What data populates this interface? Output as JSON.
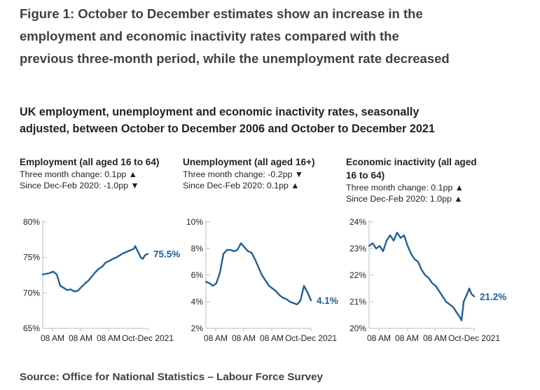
{
  "figure_title": "Figure 1: October to December estimates show an increase in the employment and economic inactivity rates compared with the previous three-month period, while the unemployment rate decreased",
  "subtitle": "UK employment, unemployment and economic inactivity rates, seasonally adjusted, between October to December 2006 and October to December 2021",
  "source": "Source: Office for National Statistics – Labour Force Survey",
  "colors": {
    "line": "#206095",
    "axis": "#bdbdbd",
    "text": "#222222"
  },
  "panels": [
    {
      "title": "Employment (all aged 16 to 64)",
      "change_line": "Three month change: 0.1pp ▲",
      "since_line": "Since Dec-Feb 2020: -1.0pp ▼"
    },
    {
      "title": "Unemployment (all aged 16+)",
      "change_line": "Three month change: -0.2pp ▼",
      "since_line": "Since Dec-Feb 2020: 0.1pp ▲"
    },
    {
      "title": "Economic inactivity (all aged 16 to 64)",
      "change_line": "Three month change: 0.1pp ▲",
      "since_line": "Since Dec-Feb 2020: 1.0pp ▲"
    }
  ],
  "chart_data": [
    {
      "type": "line",
      "title": "Employment (all aged 16 to 64)",
      "ylim": [
        65,
        80
      ],
      "yticks": [
        80,
        75,
        70,
        65
      ],
      "ytick_labels": [
        "80%",
        "75%",
        "70%",
        "65%"
      ],
      "xlim": [
        2006.8,
        2021.8
      ],
      "xticks": [
        2008.2,
        2012.2,
        2016.2,
        2021.8
      ],
      "xtick_labels": [
        "08 AM",
        "08 AM",
        "08 AM",
        "Oct-Dec 2021"
      ],
      "end_label": "75.5%",
      "series": [
        {
          "name": "Employment rate",
          "x": [
            2006.8,
            2007.3,
            2007.8,
            2008.3,
            2008.8,
            2009.3,
            2009.8,
            2010.3,
            2010.8,
            2011.3,
            2011.8,
            2012.3,
            2012.8,
            2013.3,
            2013.8,
            2014.3,
            2014.8,
            2015.3,
            2015.8,
            2016.3,
            2016.8,
            2017.3,
            2017.8,
            2018.3,
            2018.8,
            2019.3,
            2019.8,
            2020.0,
            2020.3,
            2020.8,
            2021.1,
            2021.4,
            2021.8
          ],
          "y": [
            72.6,
            72.7,
            72.8,
            73.0,
            72.6,
            71.0,
            70.7,
            70.4,
            70.5,
            70.2,
            70.3,
            70.8,
            71.3,
            71.7,
            72.3,
            72.9,
            73.4,
            73.7,
            74.3,
            74.5,
            74.8,
            75.0,
            75.3,
            75.6,
            75.8,
            76.0,
            76.2,
            76.6,
            76.0,
            75.0,
            74.8,
            75.3,
            75.5
          ]
        }
      ]
    },
    {
      "type": "line",
      "title": "Unemployment (all aged 16+)",
      "ylim": [
        2,
        10
      ],
      "yticks": [
        10,
        8,
        6,
        4,
        2
      ],
      "ytick_labels": [
        "10%",
        "8%",
        "6%",
        "4%",
        "2%"
      ],
      "xlim": [
        2006.8,
        2021.8
      ],
      "xticks": [
        2008.2,
        2012.2,
        2016.2,
        2021.8
      ],
      "xtick_labels": [
        "08 AM",
        "08 AM",
        "08 AM",
        "Oct-Dec 2021"
      ],
      "end_label": "4.1%",
      "series": [
        {
          "name": "Unemployment rate",
          "x": [
            2006.8,
            2007.3,
            2007.8,
            2008.3,
            2008.8,
            2009.3,
            2009.8,
            2010.3,
            2010.8,
            2011.3,
            2011.8,
            2012.3,
            2012.8,
            2013.3,
            2013.8,
            2014.3,
            2014.8,
            2015.3,
            2015.8,
            2016.3,
            2016.8,
            2017.3,
            2017.8,
            2018.3,
            2018.8,
            2019.3,
            2019.8,
            2020.0,
            2020.3,
            2020.8,
            2021.1,
            2021.4,
            2021.8
          ],
          "y": [
            5.5,
            5.4,
            5.2,
            5.4,
            6.2,
            7.6,
            7.9,
            7.9,
            7.8,
            7.9,
            8.4,
            8.1,
            7.8,
            7.7,
            7.2,
            6.6,
            6.0,
            5.6,
            5.2,
            5.0,
            4.8,
            4.5,
            4.3,
            4.2,
            4.0,
            3.9,
            3.8,
            3.9,
            4.1,
            5.2,
            4.9,
            4.6,
            4.1
          ]
        }
      ]
    },
    {
      "type": "line",
      "title": "Economic inactivity (all aged 16 to 64)",
      "ylim": [
        20,
        24
      ],
      "yticks": [
        24,
        23,
        22,
        21,
        20
      ],
      "ytick_labels": [
        "24%",
        "23%",
        "22%",
        "21%",
        "20%"
      ],
      "xlim": [
        2006.8,
        2021.8
      ],
      "xticks": [
        2008.2,
        2012.2,
        2016.2,
        2021.8
      ],
      "xtick_labels": [
        "08 AM",
        "08 AM",
        "08 AM",
        "Oct-Dec 2021"
      ],
      "end_label": "21.2%",
      "series": [
        {
          "name": "Economic inactivity rate",
          "x": [
            2006.8,
            2007.3,
            2007.8,
            2008.3,
            2008.8,
            2009.3,
            2009.8,
            2010.3,
            2010.8,
            2011.3,
            2011.8,
            2012.3,
            2012.8,
            2013.3,
            2013.8,
            2014.3,
            2014.8,
            2015.3,
            2015.8,
            2016.3,
            2016.8,
            2017.3,
            2017.8,
            2018.3,
            2018.8,
            2019.3,
            2019.8,
            2020.0,
            2020.3,
            2020.8,
            2021.1,
            2021.4,
            2021.8
          ],
          "y": [
            23.1,
            23.2,
            23.0,
            23.1,
            22.9,
            23.3,
            23.5,
            23.3,
            23.6,
            23.4,
            23.5,
            23.1,
            22.8,
            22.6,
            22.5,
            22.2,
            22.0,
            21.9,
            21.7,
            21.6,
            21.4,
            21.2,
            21.0,
            20.9,
            20.8,
            20.6,
            20.4,
            20.3,
            21.0,
            21.3,
            21.5,
            21.3,
            21.2
          ]
        }
      ]
    }
  ]
}
